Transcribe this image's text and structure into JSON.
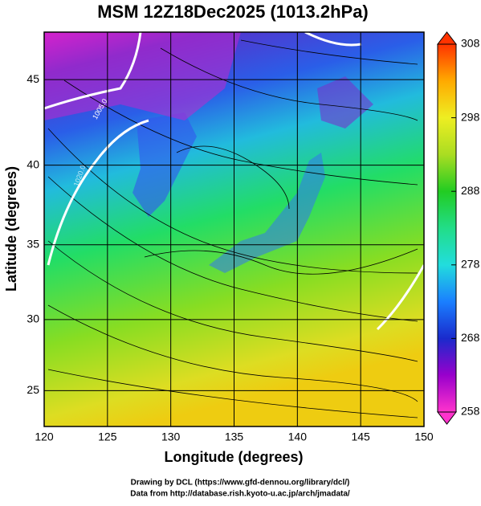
{
  "title": "MSM 12Z18Dec2025 (1013.2hPa)",
  "map": {
    "projection": "mercator",
    "grid": true,
    "x_axis": {
      "label": "Longitude (degrees)",
      "lim": [
        120,
        150
      ],
      "ticks": [
        120,
        125,
        130,
        135,
        140,
        145,
        150
      ]
    },
    "y_axis": {
      "label": "Latitude  (degrees)",
      "lim": [
        22.4,
        47.6
      ],
      "ticks": [
        25,
        30,
        35,
        40,
        45
      ]
    },
    "contour_labels": [
      "1005.0",
      "1020.0"
    ]
  },
  "colorbar": {
    "lim": [
      258,
      308
    ],
    "ticks": [
      258,
      268,
      278,
      288,
      298,
      308
    ],
    "colors": [
      "#ff33cc",
      "#9900cc",
      "#1a2acc",
      "#1a7fff",
      "#22dddd",
      "#22dd88",
      "#22cc22",
      "#aadd22",
      "#eeee22",
      "#ffaa00",
      "#ff3300"
    ]
  },
  "credits": [
    "Drawing by DCL (https://www.gfd-dennou.org/library/dcl/)",
    "Data from http://database.rish.kyoto-u.ac.jp/arch/jmadata/"
  ]
}
